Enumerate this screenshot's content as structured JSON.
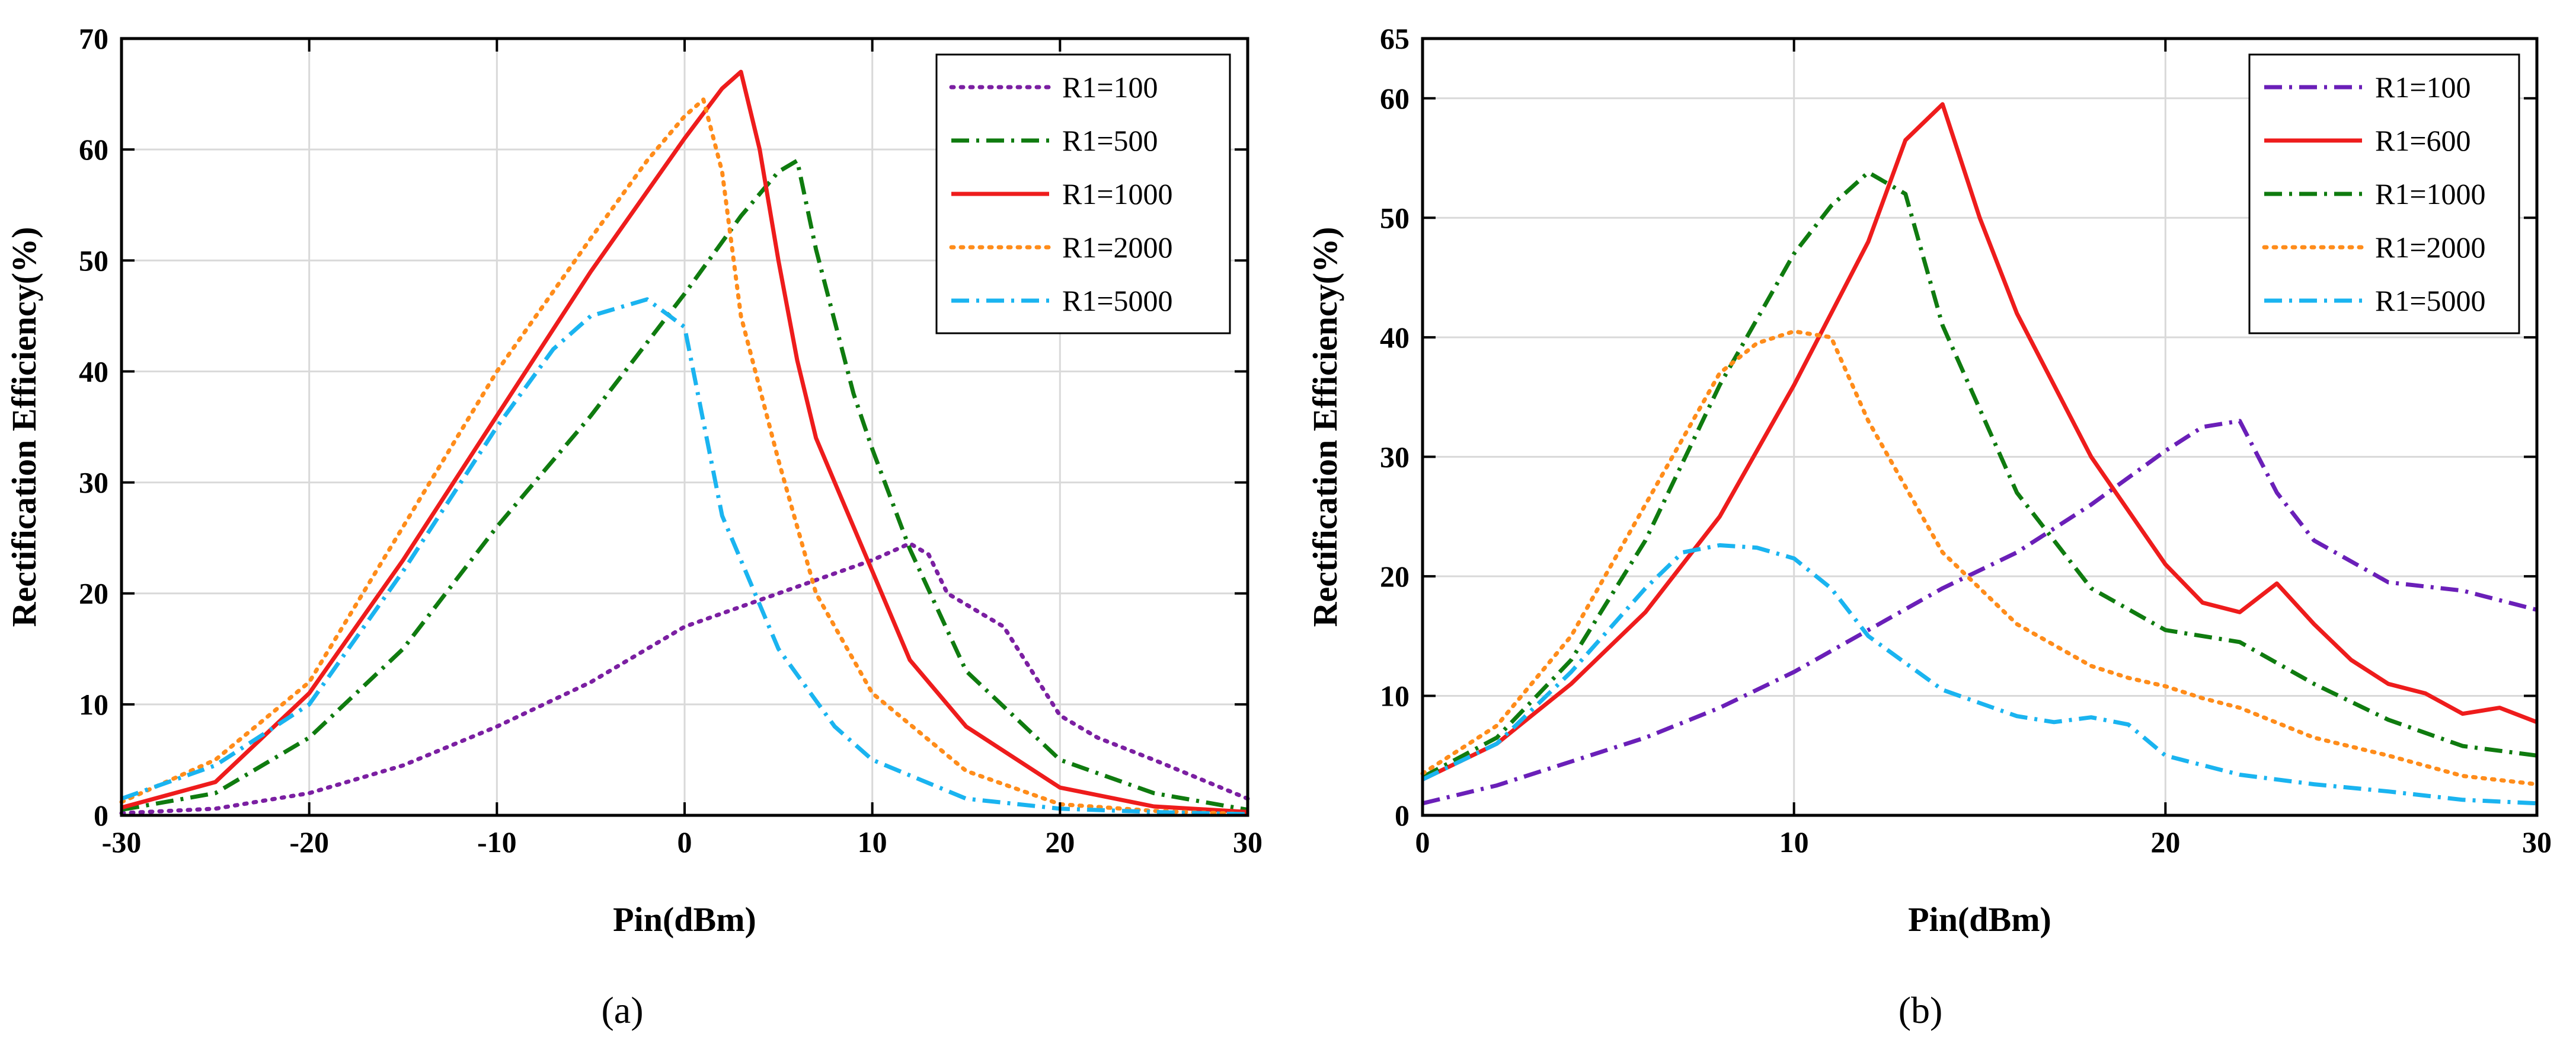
{
  "chart_data": [
    {
      "type": "line",
      "panel_label": "(a)",
      "xlabel": "Pin(dBm)",
      "ylabel": "Rectification Efficiency(%)",
      "xlim": [
        -30,
        30
      ],
      "ylim": [
        0,
        70
      ],
      "xticks": [
        -30,
        -20,
        -10,
        0,
        10,
        20,
        30
      ],
      "yticks": [
        0,
        10,
        20,
        30,
        40,
        50,
        60,
        70
      ],
      "grid": true,
      "legend_position": "top-right",
      "series": [
        {
          "name": "R1=100",
          "color": "#7b1fa2",
          "style": "dotted",
          "x": [
            -30,
            -25,
            -20,
            -15,
            -10,
            -5,
            0,
            5,
            10,
            12,
            13,
            14,
            17,
            20,
            22,
            25,
            30
          ],
          "y": [
            0.2,
            0.6,
            2,
            4.5,
            8,
            12,
            17,
            20,
            23,
            24.5,
            23.5,
            20,
            17,
            9,
            7,
            5,
            1.5
          ]
        },
        {
          "name": "R1=500",
          "color": "#0f7b0f",
          "style": "dashdot",
          "x": [
            -30,
            -25,
            -20,
            -15,
            -10,
            -5,
            0,
            3,
            5,
            6,
            7,
            9,
            10,
            12,
            15,
            20,
            25,
            30
          ],
          "y": [
            0.5,
            2,
            7,
            15,
            26,
            36,
            47,
            54,
            58,
            59,
            51,
            38,
            33,
            24,
            13,
            5,
            2,
            0.5
          ]
        },
        {
          "name": "R1=1000",
          "color": "#ee1c1c",
          "style": "solid",
          "x": [
            -30,
            -25,
            -20,
            -15,
            -10,
            -5,
            0,
            2,
            3,
            4,
            5,
            6,
            7,
            8,
            10,
            12,
            15,
            20,
            25,
            30
          ],
          "y": [
            0.7,
            3,
            11,
            23,
            36,
            49,
            61,
            65.5,
            67,
            60,
            50,
            41,
            34,
            30,
            22,
            14,
            8,
            2.5,
            0.8,
            0.3
          ]
        },
        {
          "name": "R1=2000",
          "color": "#ff8c1a",
          "style": "dotted",
          "x": [
            -30,
            -25,
            -20,
            -15,
            -10,
            -5,
            -2,
            0,
            1,
            2,
            3,
            5,
            7,
            10,
            15,
            20,
            25,
            30
          ],
          "y": [
            1.2,
            5,
            12,
            26,
            40,
            52,
            59,
            63,
            64.5,
            58,
            45,
            32,
            20,
            11,
            4,
            1,
            0.4,
            0.1
          ]
        },
        {
          "name": "R1=5000",
          "color": "#1ab4f0",
          "style": "dashdot",
          "x": [
            -30,
            -25,
            -20,
            -15,
            -10,
            -7,
            -5,
            -2,
            0,
            2,
            5,
            8,
            10,
            15,
            20,
            25,
            30
          ],
          "y": [
            1.5,
            4.5,
            10,
            22,
            35,
            42,
            45,
            46.5,
            44,
            27,
            15,
            8,
            5,
            1.5,
            0.6,
            0.3,
            0.1
          ]
        }
      ]
    },
    {
      "type": "line",
      "panel_label": "(b)",
      "xlabel": "Pin(dBm)",
      "ylabel": "Rectification Efficiency(%)",
      "xlim": [
        0,
        30
      ],
      "ylim": [
        0,
        65
      ],
      "xticks": [
        0,
        10,
        20,
        30
      ],
      "yticks": [
        0,
        10,
        20,
        30,
        40,
        50,
        60,
        65
      ],
      "grid": true,
      "legend_position": "top-right",
      "series": [
        {
          "name": "R1=100",
          "color": "#6a1fb8",
          "style": "dashdot",
          "x": [
            0,
            2,
            4,
            6,
            8,
            10,
            12,
            14,
            16,
            18,
            20,
            21,
            22,
            23,
            24,
            26,
            28,
            30
          ],
          "y": [
            1,
            2.5,
            4.5,
            6.5,
            9,
            12,
            15.5,
            19,
            22,
            26,
            30.5,
            32.5,
            33,
            27,
            23,
            19.5,
            18.8,
            17.2
          ]
        },
        {
          "name": "R1=600",
          "color": "#ee1c1c",
          "style": "solid",
          "x": [
            0,
            2,
            4,
            6,
            8,
            10,
            12,
            13,
            14,
            15,
            16,
            18,
            20,
            21,
            22,
            23,
            24,
            25,
            26,
            27,
            28,
            29,
            30
          ],
          "y": [
            3,
            6,
            11,
            17,
            25,
            36,
            48,
            56.5,
            59.5,
            50,
            42,
            30,
            21,
            17.8,
            17,
            19.4,
            16,
            13,
            11,
            10.2,
            8.5,
            9,
            7.8
          ]
        },
        {
          "name": "R1=1000",
          "color": "#0f7b0f",
          "style": "dashdot",
          "x": [
            0,
            2,
            4,
            6,
            8,
            10,
            11,
            12,
            13,
            14,
            16,
            18,
            20,
            21,
            22,
            24,
            26,
            28,
            30
          ],
          "y": [
            3.2,
            6.5,
            13,
            23,
            36,
            47,
            51,
            53.8,
            52,
            41,
            27,
            19,
            15.5,
            15,
            14.5,
            11,
            8,
            5.8,
            5
          ]
        },
        {
          "name": "R1=2000",
          "color": "#ff8c1a",
          "style": "dotted",
          "x": [
            0,
            2,
            4,
            6,
            8,
            9,
            10,
            11,
            12,
            14,
            16,
            18,
            19,
            20,
            21,
            22,
            24,
            26,
            28,
            30
          ],
          "y": [
            3.5,
            7.5,
            15,
            26,
            37,
            39.5,
            40.5,
            40,
            33,
            22,
            16,
            12.5,
            11.5,
            10.8,
            9.8,
            9,
            6.5,
            5,
            3.3,
            2.6
          ]
        },
        {
          "name": "R1=5000",
          "color": "#1ab4f0",
          "style": "dashdot",
          "x": [
            0,
            2,
            4,
            6,
            7,
            8,
            9,
            10,
            11,
            12,
            14,
            16,
            17,
            18,
            19,
            20,
            22,
            24,
            26,
            28,
            30
          ],
          "y": [
            3,
            6,
            12,
            19,
            22,
            22.6,
            22.4,
            21.5,
            19,
            15,
            10.5,
            8.3,
            7.8,
            8.2,
            7.6,
            5,
            3.4,
            2.6,
            2,
            1.3,
            1
          ]
        }
      ]
    }
  ]
}
